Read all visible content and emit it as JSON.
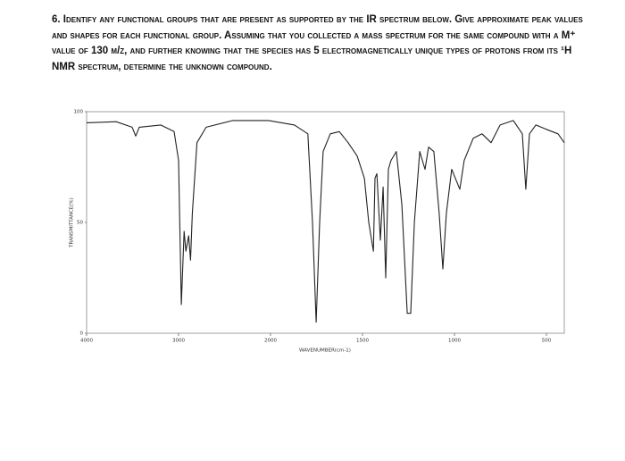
{
  "question": "6. Identify any functional groups that are present as supported by the IR spectrum below. Give approximate peak values and shapes for each functional group. Assuming that you collected a mass spectrum for the same compound with a M⁺ value of 130 m/z, and further knowing that the species has 5 electromagnetically unique types of protons from its ¹H NMR spectrum, determine the unknown compound.",
  "chart_data": {
    "type": "line",
    "x_label": "WAVENUMBER(cm-1)",
    "y_label": "TRANSMITTANCE(%)",
    "xlim": [
      4000,
      400
    ],
    "ylim": [
      0,
      100
    ],
    "xticks": [
      4000,
      3000,
      2000,
      1500,
      1000,
      500
    ],
    "yticks": [
      0,
      50,
      100
    ],
    "series": [
      {
        "color": "#222222",
        "x": [
          4000,
          3680,
          3505,
          3466,
          3427,
          3194,
          3049,
          3000,
          2970,
          2940,
          2920,
          2890,
          2870,
          2850,
          2800,
          2700,
          2410,
          2020,
          1870,
          1797,
          1772,
          1752,
          1733,
          1714,
          1675,
          1626,
          1578,
          1529,
          1490,
          1466,
          1441,
          1432,
          1422,
          1403,
          1388,
          1374,
          1359,
          1345,
          1316,
          1286,
          1257,
          1238,
          1218,
          1189,
          1160,
          1141,
          1112,
          1083,
          1063,
          1044,
          1015,
          971,
          947,
          898,
          850,
          801,
          752,
          680,
          631,
          612,
          592,
          558,
          500,
          437,
          403
        ],
        "values": [
          95,
          95.5,
          93,
          89,
          93,
          94,
          91,
          78,
          13,
          46,
          37,
          44,
          33,
          54,
          86,
          93,
          96,
          96,
          94,
          90,
          50,
          5,
          50,
          82,
          90,
          91,
          86,
          80,
          70,
          50,
          37,
          70,
          72,
          42,
          66,
          25,
          74,
          78,
          82,
          58,
          9,
          9,
          50,
          82,
          74,
          84,
          82,
          54,
          29,
          54,
          74,
          65,
          78,
          88,
          90,
          86,
          94,
          96,
          90,
          65,
          90,
          94,
          92,
          90,
          86
        ]
      }
    ]
  }
}
